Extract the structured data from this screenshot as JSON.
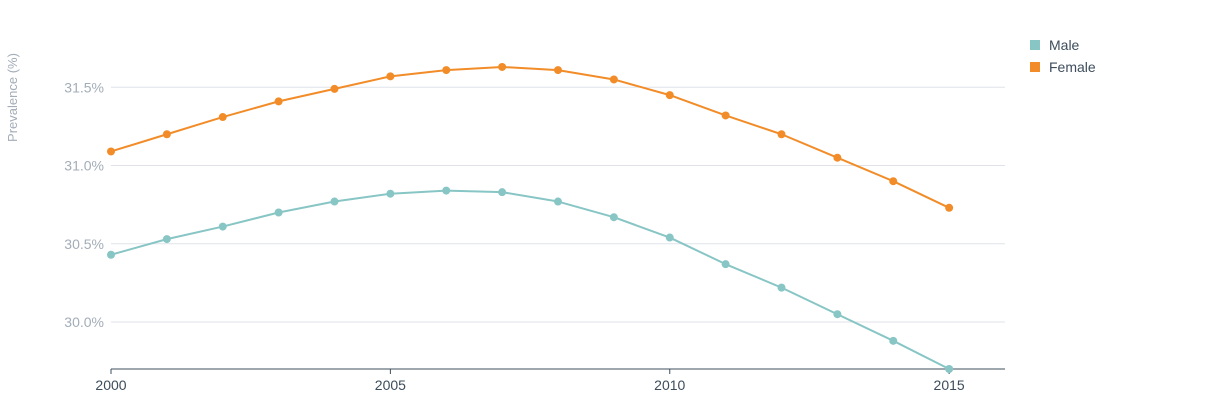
{
  "colors": {
    "male": "#88c5c5",
    "female": "#f28c28",
    "grid": "#dfe3e8",
    "axis": "#3d4d5c"
  },
  "legend": {
    "male_label": "Male",
    "female_label": "Female"
  },
  "chart_data": {
    "type": "line",
    "title": "",
    "xlabel": "",
    "ylabel": "Prevalence (%)",
    "x": [
      2000,
      2001,
      2002,
      2003,
      2004,
      2005,
      2006,
      2007,
      2008,
      2009,
      2010,
      2011,
      2012,
      2013,
      2014,
      2015
    ],
    "xticks": [
      "2000",
      "2005",
      "2010",
      "2015"
    ],
    "yticks": [
      "30.0%",
      "30.5%",
      "31.0%",
      "31.5%"
    ],
    "ylim": [
      29.7,
      31.93
    ],
    "xlim": [
      2000,
      2016
    ],
    "grid": true,
    "legend_position": "top-right",
    "series": [
      {
        "name": "Male",
        "values": [
          30.43,
          30.53,
          30.61,
          30.7,
          30.77,
          30.82,
          30.84,
          30.83,
          30.77,
          30.67,
          30.54,
          30.37,
          30.22,
          30.05,
          29.88,
          29.7
        ]
      },
      {
        "name": "Female",
        "values": [
          31.09,
          31.2,
          31.31,
          31.41,
          31.49,
          31.57,
          31.61,
          31.63,
          31.61,
          31.55,
          31.45,
          31.32,
          31.2,
          31.05,
          30.9,
          30.73
        ]
      }
    ]
  }
}
